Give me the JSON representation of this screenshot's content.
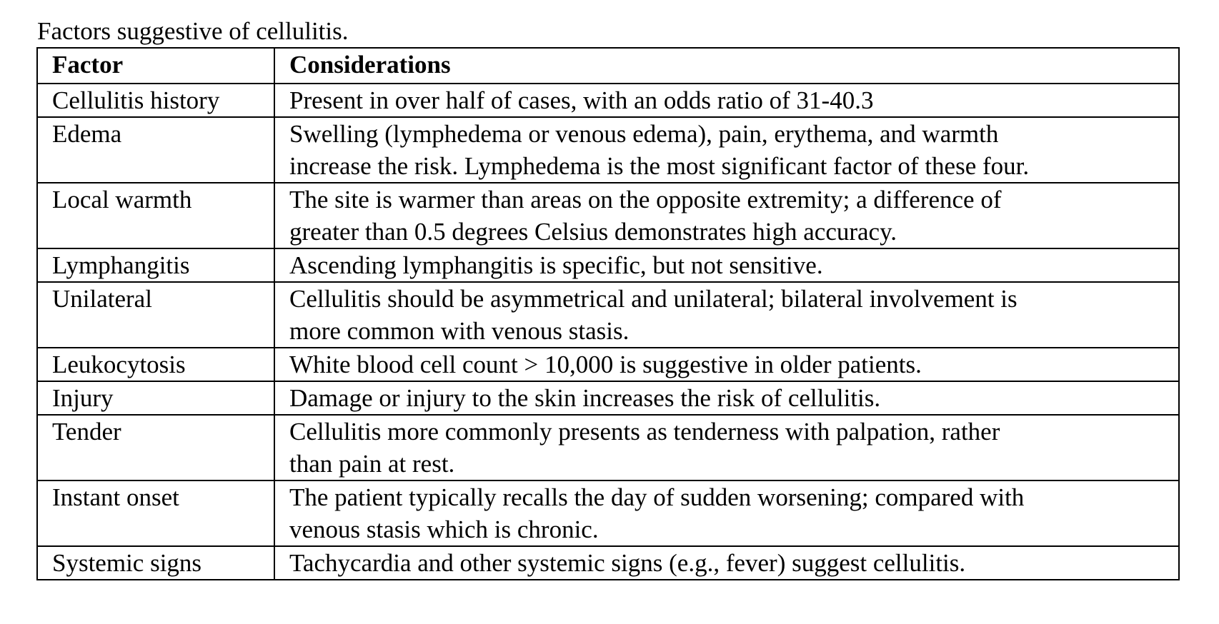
{
  "title": "Factors suggestive of cellulitis.",
  "table": {
    "headers": [
      "Factor",
      "Considerations"
    ],
    "rows": [
      {
        "factor": "Cellulitis history",
        "lines": [
          "Present in over half of cases, with an odds ratio of 31-40.3"
        ]
      },
      {
        "factor": "Edema",
        "lines": [
          "Swelling (lymphedema or venous edema), pain, erythema, and warmth",
          "increase the risk. Lymphedema is the most significant factor of these four."
        ]
      },
      {
        "factor": "Local warmth",
        "lines": [
          "The site is warmer than areas on the opposite extremity; a difference of",
          "greater than 0.5 degrees Celsius demonstrates high accuracy."
        ]
      },
      {
        "factor": "Lymphangitis",
        "lines": [
          "Ascending lymphangitis is specific, but not sensitive."
        ]
      },
      {
        "factor": "Unilateral",
        "lines": [
          "Cellulitis should be asymmetrical and unilateral; bilateral involvement is",
          "more common with venous stasis."
        ]
      },
      {
        "factor": "Leukocytosis",
        "lines": [
          "White blood cell count > 10,000 is suggestive in older patients."
        ]
      },
      {
        "factor": "Injury",
        "lines": [
          "Damage or injury to the skin increases the risk of cellulitis."
        ]
      },
      {
        "factor": "Tender",
        "lines": [
          "Cellulitis more commonly presents as tenderness with palpation, rather",
          "than pain at rest."
        ]
      },
      {
        "factor": "Instant onset",
        "lines": [
          "The patient typically recalls the day of sudden worsening; compared with",
          "venous stasis which is chronic."
        ]
      },
      {
        "factor": "Systemic signs",
        "lines": [
          "Tachycardia and other systemic signs (e.g., fever) suggest cellulitis."
        ]
      }
    ]
  }
}
